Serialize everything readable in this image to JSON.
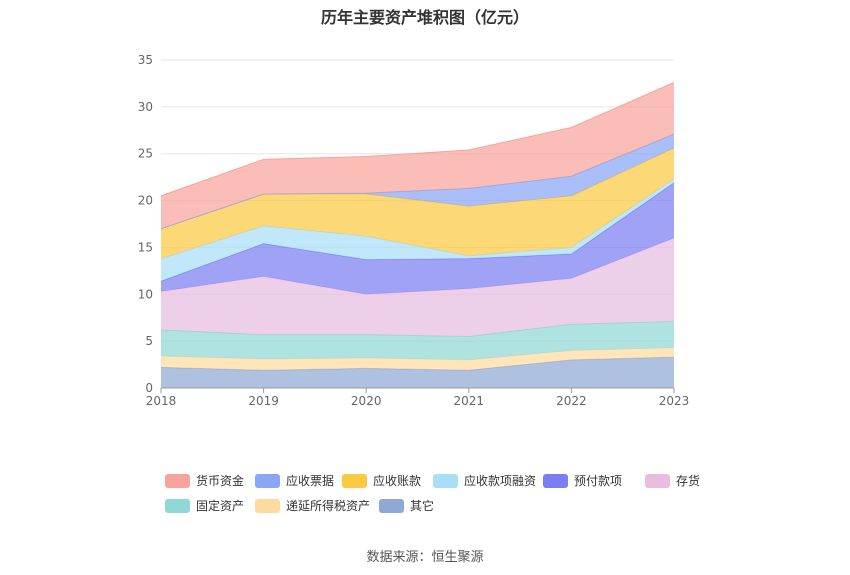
{
  "chart_data": {
    "type": "area",
    "stacked": true,
    "title": "历年主要资产堆积图（亿元）",
    "categories": [
      "2018",
      "2019",
      "2020",
      "2021",
      "2022",
      "2023"
    ],
    "ylim": [
      0,
      35
    ],
    "yticks": [
      "0",
      "5",
      "10",
      "15",
      "20",
      "25",
      "30",
      "35"
    ],
    "grid": true,
    "legend_position": "bottom",
    "series": [
      {
        "name": "其它",
        "color": "#8fa9d6",
        "values": [
          2.2,
          1.9,
          2.1,
          1.9,
          3.0,
          3.3
        ]
      },
      {
        "name": "递延所得税资产",
        "color": "#fddba0",
        "values": [
          1.2,
          1.2,
          1.1,
          1.1,
          1.0,
          1.0
        ]
      },
      {
        "name": "固定资产",
        "color": "#8fd8d6",
        "values": [
          2.8,
          2.6,
          2.5,
          2.5,
          2.8,
          2.8
        ]
      },
      {
        "name": "存货",
        "color": "#e8bde0",
        "values": [
          4.1,
          6.2,
          4.3,
          5.1,
          4.9,
          8.9
        ]
      },
      {
        "name": "预付款项",
        "color": "#7b7ef2",
        "values": [
          1.1,
          3.5,
          3.7,
          3.2,
          2.6,
          5.9
        ]
      },
      {
        "name": "应收款项融资",
        "color": "#a7def8",
        "values": [
          2.4,
          1.9,
          2.5,
          0.3,
          0.7,
          0.4
        ]
      },
      {
        "name": "应收账款",
        "color": "#fcc942",
        "values": [
          3.2,
          3.4,
          4.5,
          5.3,
          5.5,
          3.3
        ]
      },
      {
        "name": "应收票据",
        "color": "#89a6f7",
        "values": [
          0.0,
          0.0,
          0.1,
          1.9,
          2.1,
          1.5
        ]
      },
      {
        "name": "货币资金",
        "color": "#f8a39b",
        "values": [
          3.5,
          3.7,
          3.9,
          4.1,
          5.2,
          5.5
        ]
      }
    ],
    "legend_order": [
      "货币资金",
      "应收票据",
      "应收账款",
      "应收款项融资",
      "预付款项",
      "存货",
      "固定资产",
      "递延所得税资产",
      "其它"
    ]
  },
  "source": "数据来源：恒生聚源"
}
